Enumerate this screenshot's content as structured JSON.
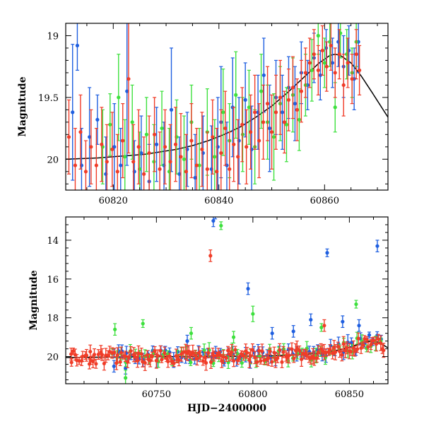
{
  "chart_data": [
    {
      "type": "scatter",
      "title": "",
      "xlabel": "",
      "ylabel": "Magnitude",
      "xlim": [
        60811,
        60872
      ],
      "ylim": [
        20.25,
        18.9
      ],
      "y_inverted": true,
      "grid": false,
      "x_ticks": [
        60820,
        60840,
        60860
      ],
      "x_tick_labels": [
        "60820",
        "60840",
        "60860"
      ],
      "y_ticks": [
        19,
        19.5,
        20
      ],
      "y_tick_labels": [
        "19",
        "19.5",
        "20"
      ],
      "series": [
        {
          "color": "#1f5fe0",
          "marker": "circle-with-errorbars",
          "points": [
            [
              60812.3,
              19.62,
              0.55
            ],
            [
              60813.2,
              19.08,
              0.2
            ],
            [
              60814.0,
              20.05,
              0.3
            ],
            [
              60815.5,
              19.82,
              0.4
            ],
            [
              60817.0,
              19.68,
              0.2
            ],
            [
              60818.6,
              20.12,
              0.3
            ],
            [
              60820.2,
              19.9,
              0.35
            ],
            [
              60821.4,
              20.05,
              0.3
            ],
            [
              60822.6,
              19.45,
              0.6
            ],
            [
              60824.0,
              20.1,
              0.25
            ],
            [
              60825.3,
              19.95,
              0.3
            ],
            [
              60826.8,
              20.18,
              0.3
            ],
            [
              60828.2,
              19.88,
              0.3
            ],
            [
              60829.6,
              20.05,
              0.35
            ],
            [
              60831.0,
              19.6,
              0.5
            ],
            [
              60832.5,
              20.12,
              0.3
            ],
            [
              60834.0,
              19.92,
              0.3
            ],
            [
              60835.5,
              20.15,
              0.35
            ],
            [
              60837.0,
              19.95,
              0.3
            ],
            [
              60838.6,
              20.08,
              0.35
            ],
            [
              60839.8,
              19.9,
              0.4
            ],
            [
              60840.4,
              19.7,
              0.45
            ],
            [
              60841.5,
              20.05,
              0.35
            ],
            [
              60842.6,
              19.58,
              0.4
            ],
            [
              60843.8,
              19.85,
              0.35
            ],
            [
              60845.0,
              19.52,
              0.3
            ],
            [
              60846.2,
              19.92,
              0.35
            ],
            [
              60847.4,
              19.62,
              0.3
            ],
            [
              60848.5,
              19.32,
              0.3
            ],
            [
              60849.6,
              19.75,
              0.35
            ],
            [
              60850.8,
              19.5,
              0.3
            ],
            [
              60852.0,
              19.62,
              0.3
            ],
            [
              60853.2,
              19.42,
              0.25
            ],
            [
              60854.4,
              19.55,
              0.3
            ],
            [
              60855.6,
              19.3,
              0.25
            ],
            [
              60856.8,
              19.4,
              0.2
            ],
            [
              60858.0,
              19.18,
              0.2
            ],
            [
              60859.2,
              19.32,
              0.2
            ],
            [
              60860.3,
              19.1,
              0.15
            ],
            [
              60861.5,
              19.22,
              0.2
            ],
            [
              60862.6,
              19.05,
              0.2
            ],
            [
              60863.6,
              19.25,
              0.25
            ],
            [
              60864.6,
              19.12,
              0.2
            ],
            [
              60865.6,
              19.35,
              0.25
            ],
            [
              60866.4,
              19.05,
              0.25
            ]
          ]
        },
        {
          "color": "#3ee03e",
          "marker": "circle-with-errorbars",
          "points": [
            [
              60818.0,
              19.9,
              0.3
            ],
            [
              60819.4,
              19.72,
              0.25
            ],
            [
              60821.0,
              19.5,
              0.35
            ],
            [
              60822.2,
              19.98,
              0.3
            ],
            [
              60823.6,
              19.7,
              0.3
            ],
            [
              60825.0,
              20.08,
              0.3
            ],
            [
              60826.3,
              19.8,
              0.3
            ],
            [
              60827.7,
              20.02,
              0.3
            ],
            [
              60829.2,
              19.75,
              0.3
            ],
            [
              60830.6,
              20.1,
              0.35
            ],
            [
              60832.0,
              19.82,
              0.3
            ],
            [
              60833.4,
              20.0,
              0.35
            ],
            [
              60834.8,
              19.7,
              0.3
            ],
            [
              60836.3,
              20.05,
              0.3
            ],
            [
              60837.8,
              19.78,
              0.35
            ],
            [
              60839.2,
              19.98,
              0.3
            ],
            [
              60840.8,
              19.62,
              0.35
            ],
            [
              60842.0,
              19.85,
              0.3
            ],
            [
              60843.2,
              19.48,
              0.35
            ],
            [
              60844.5,
              19.8,
              0.3
            ],
            [
              60845.7,
              19.58,
              0.3
            ],
            [
              60846.8,
              19.9,
              0.3
            ],
            [
              60848.0,
              19.45,
              0.3
            ],
            [
              60849.2,
              19.7,
              0.3
            ],
            [
              60850.4,
              19.82,
              0.35
            ],
            [
              60851.6,
              19.55,
              0.3
            ],
            [
              60852.8,
              19.72,
              0.3
            ],
            [
              60854.0,
              19.48,
              0.3
            ],
            [
              60855.2,
              19.68,
              0.25
            ],
            [
              60856.4,
              19.4,
              0.25
            ],
            [
              60857.6,
              19.28,
              0.25
            ],
            [
              60858.8,
              19.0,
              0.15
            ],
            [
              60860.0,
              19.22,
              0.2
            ],
            [
              60861.0,
              19.05,
              0.2
            ],
            [
              60862.0,
              19.58,
              0.2
            ],
            [
              60863.0,
              18.98,
              0.2
            ],
            [
              60864.2,
              19.15,
              0.2
            ],
            [
              60865.2,
              19.3,
              0.2
            ],
            [
              60866.0,
              19.05,
              0.2
            ]
          ]
        },
        {
          "color": "#f03c28",
          "marker": "circle-with-errorbars",
          "points": [
            [
              60811.6,
              19.82,
              0.3
            ],
            [
              60812.8,
              20.05,
              0.3
            ],
            [
              60813.8,
              19.78,
              0.3
            ],
            [
              60814.8,
              20.1,
              0.25
            ],
            [
              60815.8,
              19.9,
              0.3
            ],
            [
              60816.8,
              20.05,
              0.3
            ],
            [
              60817.8,
              19.88,
              0.3
            ],
            [
              60818.8,
              20.02,
              0.3
            ],
            [
              60819.8,
              19.92,
              0.3
            ],
            [
              60820.8,
              20.1,
              0.3
            ],
            [
              60821.8,
              19.85,
              0.3
            ],
            [
              60822.9,
              19.35,
              0.6
            ],
            [
              60823.8,
              20.02,
              0.3
            ],
            [
              60824.8,
              19.9,
              0.3
            ],
            [
              60825.8,
              20.12,
              0.3
            ],
            [
              60826.8,
              19.95,
              0.3
            ],
            [
              60827.8,
              19.8,
              0.3
            ],
            [
              60828.8,
              20.08,
              0.3
            ],
            [
              60829.8,
              19.9,
              0.3
            ],
            [
              60830.8,
              20.02,
              0.3
            ],
            [
              60831.8,
              19.88,
              0.3
            ],
            [
              60832.8,
              19.98,
              0.35
            ],
            [
              60833.8,
              20.1,
              0.3
            ],
            [
              60834.8,
              19.85,
              0.3
            ],
            [
              60835.8,
              20.05,
              0.3
            ],
            [
              60836.8,
              19.92,
              0.3
            ],
            [
              60837.8,
              20.08,
              0.3
            ],
            [
              60838.8,
              19.82,
              0.3
            ],
            [
              60839.6,
              20.1,
              0.35
            ],
            [
              60840.4,
              19.95,
              0.35
            ],
            [
              60841.2,
              19.75,
              0.3
            ],
            [
              60842.0,
              20.08,
              0.3
            ],
            [
              60842.8,
              19.88,
              0.3
            ],
            [
              60843.6,
              19.98,
              0.3
            ],
            [
              60844.4,
              19.72,
              0.3
            ],
            [
              60845.2,
              19.9,
              0.3
            ],
            [
              60846.0,
              19.78,
              0.3
            ],
            [
              60846.8,
              19.62,
              0.3
            ],
            [
              60847.6,
              19.85,
              0.3
            ],
            [
              60848.4,
              19.7,
              0.3
            ],
            [
              60849.2,
              19.55,
              0.3
            ],
            [
              60850.0,
              19.78,
              0.3
            ],
            [
              60850.8,
              19.62,
              0.3
            ],
            [
              60851.6,
              19.5,
              0.3
            ],
            [
              60852.4,
              19.7,
              0.25
            ],
            [
              60853.2,
              19.52,
              0.25
            ],
            [
              60854.0,
              19.42,
              0.25
            ],
            [
              60854.8,
              19.6,
              0.25
            ],
            [
              60855.6,
              19.45,
              0.25
            ],
            [
              60856.4,
              19.3,
              0.2
            ],
            [
              60857.2,
              19.22,
              0.2
            ],
            [
              60858.0,
              19.15,
              0.2
            ],
            [
              60858.8,
              19.28,
              0.2
            ],
            [
              60859.6,
              19.12,
              0.2
            ],
            [
              60860.4,
              19.25,
              0.2
            ],
            [
              60861.2,
              19.08,
              0.2
            ],
            [
              60862.0,
              19.3,
              0.2
            ],
            [
              60862.8,
              19.15,
              0.2
            ],
            [
              60863.6,
              19.4,
              0.25
            ],
            [
              60864.4,
              19.22,
              0.2
            ],
            [
              60865.2,
              19.35,
              0.2
            ],
            [
              60866.0,
              19.15,
              0.2
            ],
            [
              60866.6,
              19.28,
              0.2
            ]
          ]
        }
      ],
      "model_curve": {
        "color": "#000000",
        "x": [
          60811,
          60814,
          60817,
          60820,
          60823,
          60826,
          60829,
          60832,
          60835,
          60838,
          60841,
          60844,
          60847,
          60850,
          60853,
          60856,
          60859,
          60861,
          60862,
          60863,
          60865,
          60867,
          60869,
          60872
        ],
        "y": [
          20.0,
          19.995,
          19.99,
          19.98,
          19.97,
          19.96,
          19.94,
          19.92,
          19.89,
          19.85,
          19.8,
          19.74,
          19.66,
          19.57,
          19.46,
          19.34,
          19.22,
          19.16,
          19.15,
          19.16,
          19.22,
          19.33,
          19.46,
          19.66
        ]
      }
    },
    {
      "type": "scatter",
      "title": "",
      "xlabel": "HJD−2400000",
      "ylabel": "Magnitude",
      "xlim": [
        60703,
        60870
      ],
      "ylim": [
        21.4,
        12.8
      ],
      "y_inverted": true,
      "grid": false,
      "x_ticks": [
        60750,
        60800,
        60850
      ],
      "x_tick_labels": [
        "60750",
        "60800",
        "60850"
      ],
      "y_ticks": [
        14,
        16,
        18,
        20
      ],
      "y_tick_labels": [
        "14",
        "16",
        "18",
        "20"
      ],
      "series": [
        {
          "color": "#1f5fe0",
          "marker": "circle-with-errorbars",
          "baseline": {
            "x_start": 60728,
            "x_end": 60868,
            "step": 2.2,
            "seed": 11
          },
          "outliers": [
            [
              60779.5,
              13.0,
              0.3
            ],
            [
              60780.5,
              12.7,
              0.2
            ],
            [
              60797.5,
              16.5,
              0.3
            ],
            [
              60830.0,
              18.1,
              0.3
            ],
            [
              60838.5,
              14.65,
              0.2
            ],
            [
              60864.5,
              14.3,
              0.3
            ],
            [
              60846.5,
              18.2,
              0.3
            ],
            [
              60766.0,
              19.2,
              0.3
            ],
            [
              60810.0,
              18.8,
              0.3
            ],
            [
              60821.0,
              18.7,
              0.3
            ],
            [
              60855.0,
              18.4,
              0.3
            ],
            [
              60734.0,
              20.6,
              0.3
            ],
            [
              60728.0,
              20.5,
              0.3
            ]
          ]
        },
        {
          "color": "#3ee03e",
          "marker": "circle-with-errorbars",
          "baseline": {
            "x_start": 60727,
            "x_end": 60868,
            "step": 2.4,
            "seed": 23
          },
          "outliers": [
            [
              60783.5,
              13.25,
              0.2
            ],
            [
              60800.0,
              17.8,
              0.4
            ],
            [
              60728.5,
              18.6,
              0.3
            ],
            [
              60743.0,
              18.3,
              0.2
            ],
            [
              60835.5,
              18.5,
              0.2
            ],
            [
              60853.5,
              17.3,
              0.2
            ],
            [
              60768.0,
              18.8,
              0.3
            ],
            [
              60790.0,
              19.0,
              0.3
            ],
            [
              60734.0,
              21.1,
              0.4
            ]
          ]
        },
        {
          "color": "#f03c28",
          "marker": "circle-with-errorbars",
          "baseline": {
            "x_start": 60706,
            "x_end": 60868,
            "step": 1.0,
            "seed": 37
          },
          "outliers": [
            [
              60778.0,
              14.8,
              0.3
            ],
            [
              60837.0,
              18.4,
              0.3
            ],
            [
              60706.0,
              20.3,
              0.2
            ],
            [
              60716.0,
              20.2,
              0.2
            ]
          ]
        }
      ],
      "model_curve": {
        "color": "#000000",
        "x": [
          60703,
          60730,
          60760,
          60790,
          60810,
          60825,
          60835,
          60845,
          60850,
          60855,
          60860,
          60865,
          60870
        ],
        "y": [
          20.05,
          20.02,
          20.0,
          19.99,
          19.96,
          19.9,
          19.82,
          19.65,
          19.52,
          19.35,
          19.2,
          19.25,
          19.55
        ]
      }
    }
  ]
}
